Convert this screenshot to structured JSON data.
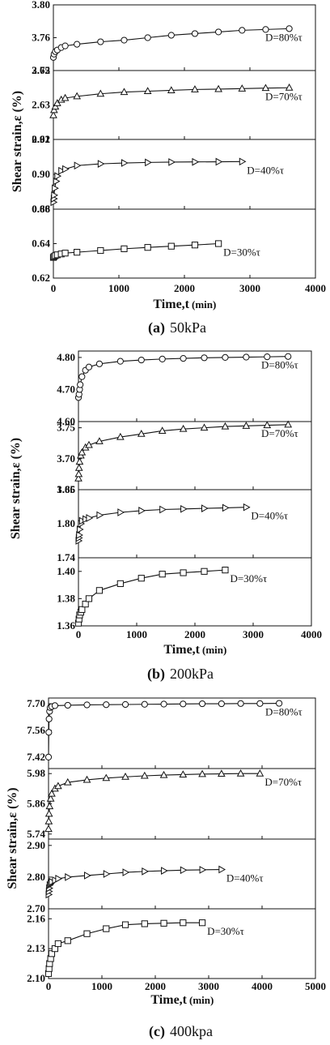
{
  "figure": {
    "panels": [
      {
        "id": "a",
        "caption_letter": "(a)",
        "caption_text": "50kPa",
        "xlabel": "Time,t",
        "xunit": "(min)",
        "ylabel": "Shear strain,ε (%)",
        "xlim": [
          0,
          4000
        ],
        "xticks": [
          0,
          1000,
          2000,
          3000,
          4000
        ],
        "subplots": [
          {
            "label": "D=80%τ",
            "marker": "circle",
            "ylim": [
              3.72,
              3.8
            ],
            "yticks": [
              "3.72",
              "3.76",
              "3.80"
            ]
          },
          {
            "label": "D=70%τ",
            "marker": "triangle-up",
            "ylim": [
              2.61,
              2.65
            ],
            "yticks": [
              "2.61",
              "2.63",
              "2.65"
            ]
          },
          {
            "label": "D=40%τ",
            "marker": "triangle-right",
            "ylim": [
              0.88,
              0.92
            ],
            "yticks": [
              "0.88",
              "0.90",
              "0.92"
            ]
          },
          {
            "label": "D=30%τ",
            "marker": "square",
            "ylim": [
              0.62,
              0.66
            ],
            "yticks": [
              "0.62",
              "0.64",
              "0.66"
            ]
          }
        ]
      },
      {
        "id": "b",
        "caption_letter": "(b)",
        "caption_text": "200kPa",
        "xlabel": "Time,t",
        "xunit": "(min)",
        "ylabel": "Shear strain,ε (%)",
        "xlim": [
          0,
          4000
        ],
        "xticks": [
          0,
          1000,
          2000,
          3000,
          4000
        ],
        "subplots": [
          {
            "label": "D=80%τ",
            "marker": "circle",
            "ylim": [
              4.6,
              4.82
            ],
            "yticks": [
              "4.60",
              "4.70",
              "4.80"
            ]
          },
          {
            "label": "D=70%τ",
            "marker": "triangle-up",
            "ylim": [
              3.65,
              3.76
            ],
            "yticks": [
              "3.65",
              "3.70",
              "3.75"
            ]
          },
          {
            "label": "D=40%τ",
            "marker": "triangle-right",
            "ylim": [
              1.74,
              1.86
            ],
            "yticks": [
              "1.74",
              "1.80",
              "1.86"
            ]
          },
          {
            "label": "D=30%τ",
            "marker": "square",
            "ylim": [
              1.36,
              1.41
            ],
            "yticks": [
              "1.36",
              "1.38",
              "1.40"
            ]
          }
        ]
      },
      {
        "id": "c",
        "caption_letter": "(c)",
        "caption_text": "400kpa",
        "xlabel": "Time,t",
        "xunit": "(min)",
        "ylabel": "Shear strain,ε (%)",
        "xlim": [
          0,
          5000
        ],
        "xticks": [
          0,
          1000,
          2000,
          3000,
          4000,
          5000
        ],
        "subplots": [
          {
            "label": "D=80%τ",
            "marker": "circle",
            "ylim": [
              7.36,
              7.73
            ],
            "yticks": [
              "7.42",
              "7.56",
              "7.70"
            ]
          },
          {
            "label": "D=70%τ",
            "marker": "triangle-up",
            "ylim": [
              5.72,
              6.0
            ],
            "yticks": [
              "5.74",
              "5.86",
              "5.98"
            ]
          },
          {
            "label": "D=40%τ",
            "marker": "triangle-right",
            "ylim": [
              2.7,
              2.92
            ],
            "yticks": [
              "2.70",
              "2.80",
              "2.90"
            ]
          },
          {
            "label": "D=30%τ",
            "marker": "square",
            "ylim": [
              2.1,
              2.17
            ],
            "yticks": [
              "2.10",
              "2.13",
              "2.16"
            ]
          }
        ]
      }
    ]
  },
  "chart_data": [
    {
      "type": "line",
      "title": "(a) 50kPa",
      "xlabel": "Time,t (min)",
      "ylabel": "Shear strain,ε (%)",
      "xlim": [
        0,
        4000
      ],
      "series": [
        {
          "name": "D=80%τ",
          "x": [
            0,
            10,
            30,
            60,
            120,
            180,
            360,
            720,
            1080,
            1440,
            1800,
            2160,
            2520,
            2880,
            3240,
            3600
          ],
          "y": [
            3.736,
            3.74,
            3.743,
            3.745,
            3.748,
            3.75,
            3.752,
            3.755,
            3.757,
            3.76,
            3.763,
            3.765,
            3.767,
            3.769,
            3.77,
            3.771
          ]
        },
        {
          "name": "D=70%τ",
          "x": [
            0,
            10,
            30,
            60,
            120,
            180,
            360,
            720,
            1080,
            1440,
            1800,
            2160,
            2520,
            2880,
            3240,
            3600
          ],
          "y": [
            2.624,
            2.627,
            2.629,
            2.631,
            2.633,
            2.634,
            2.635,
            2.6365,
            2.6375,
            2.638,
            2.6385,
            2.639,
            2.6392,
            2.6395,
            2.6398,
            2.64
          ]
        },
        {
          "name": "D=40%τ",
          "x": [
            0,
            5,
            10,
            20,
            40,
            60,
            120,
            180,
            360,
            720,
            1080,
            1440,
            1800,
            2160,
            2520,
            2880
          ],
          "y": [
            0.884,
            0.886,
            0.888,
            0.892,
            0.896,
            0.899,
            0.902,
            0.903,
            0.905,
            0.906,
            0.9065,
            0.9068,
            0.907,
            0.9071,
            0.9072,
            0.9073
          ]
        },
        {
          "name": "D=30%τ",
          "x": [
            0,
            10,
            30,
            60,
            120,
            180,
            360,
            720,
            1080,
            1440,
            1800,
            2160,
            2520
          ],
          "y": [
            0.632,
            0.6325,
            0.633,
            0.6335,
            0.634,
            0.6345,
            0.635,
            0.636,
            0.637,
            0.6378,
            0.6385,
            0.6392,
            0.64
          ]
        }
      ]
    },
    {
      "type": "line",
      "title": "(b) 200kPa",
      "xlabel": "Time,t (min)",
      "ylabel": "Shear strain,ε (%)",
      "xlim": [
        0,
        4000
      ],
      "series": [
        {
          "name": "D=80%τ",
          "x": [
            0,
            10,
            20,
            30,
            60,
            120,
            180,
            360,
            720,
            1080,
            1440,
            1800,
            2160,
            2520,
            2880,
            3240,
            3600
          ],
          "y": [
            4.675,
            4.685,
            4.7,
            4.715,
            4.74,
            4.76,
            4.77,
            4.78,
            4.788,
            4.792,
            4.795,
            4.797,
            4.799,
            4.8,
            4.801,
            4.802,
            4.803
          ]
        },
        {
          "name": "D=70%τ",
          "x": [
            0,
            5,
            10,
            20,
            40,
            60,
            120,
            180,
            360,
            720,
            1080,
            1440,
            1800,
            2160,
            2520,
            2880,
            3240,
            3600
          ],
          "y": [
            3.668,
            3.675,
            3.685,
            3.695,
            3.705,
            3.71,
            3.718,
            3.722,
            3.728,
            3.735,
            3.74,
            3.745,
            3.748,
            3.75,
            3.752,
            3.753,
            3.754,
            3.755
          ]
        },
        {
          "name": "D=40%τ",
          "x": [
            0,
            5,
            10,
            20,
            40,
            60,
            120,
            180,
            360,
            720,
            1080,
            1440,
            1800,
            2160,
            2520,
            2880
          ],
          "y": [
            1.77,
            1.775,
            1.78,
            1.79,
            1.8,
            1.805,
            1.808,
            1.81,
            1.815,
            1.82,
            1.823,
            1.825,
            1.826,
            1.827,
            1.828,
            1.829
          ]
        },
        {
          "name": "D=30%τ",
          "x": [
            0,
            10,
            20,
            40,
            60,
            120,
            180,
            360,
            720,
            1080,
            1440,
            1800,
            2160,
            2520
          ],
          "y": [
            1.362,
            1.365,
            1.368,
            1.37,
            1.372,
            1.376,
            1.38,
            1.386,
            1.391,
            1.395,
            1.398,
            1.399,
            1.4,
            1.401
          ]
        }
      ]
    },
    {
      "type": "line",
      "title": "(c) 400kpa",
      "xlabel": "Time,t (min)",
      "ylabel": "Shear strain,ε (%)",
      "xlim": [
        0,
        5000
      ],
      "series": [
        {
          "name": "D=80%τ",
          "x": [
            0,
            5,
            10,
            20,
            30,
            60,
            120,
            360,
            720,
            1080,
            1440,
            1800,
            2160,
            2520,
            2880,
            3240,
            3600,
            3960,
            4320
          ],
          "y": [
            7.42,
            7.55,
            7.62,
            7.66,
            7.68,
            7.685,
            7.69,
            7.692,
            7.694,
            7.695,
            7.696,
            7.697,
            7.698,
            7.699,
            7.7,
            7.7,
            7.701,
            7.701,
            7.702
          ]
        },
        {
          "name": "D=70%τ",
          "x": [
            0,
            5,
            10,
            20,
            40,
            60,
            120,
            180,
            360,
            720,
            1080,
            1440,
            1800,
            2160,
            2520,
            2880,
            3240,
            3600,
            3960
          ],
          "y": [
            5.76,
            5.79,
            5.82,
            5.85,
            5.88,
            5.9,
            5.92,
            5.93,
            5.945,
            5.955,
            5.962,
            5.967,
            5.971,
            5.974,
            5.976,
            5.978,
            5.979,
            5.98,
            5.98
          ]
        },
        {
          "name": "D=40%τ",
          "x": [
            0,
            5,
            10,
            20,
            40,
            60,
            120,
            180,
            360,
            720,
            1080,
            1440,
            1800,
            2160,
            2520,
            2880,
            3240
          ],
          "y": [
            2.745,
            2.755,
            2.765,
            2.775,
            2.78,
            2.785,
            2.79,
            2.795,
            2.8,
            2.805,
            2.81,
            2.815,
            2.818,
            2.82,
            2.822,
            2.823,
            2.824
          ]
        },
        {
          "name": "D=30%τ",
          "x": [
            0,
            10,
            20,
            40,
            60,
            120,
            180,
            360,
            720,
            1080,
            1440,
            1800,
            2160,
            2520,
            2880
          ],
          "y": [
            2.105,
            2.11,
            2.115,
            2.12,
            2.125,
            2.13,
            2.135,
            2.138,
            2.145,
            2.15,
            2.154,
            2.155,
            2.1555,
            2.156,
            2.156
          ]
        }
      ]
    }
  ]
}
